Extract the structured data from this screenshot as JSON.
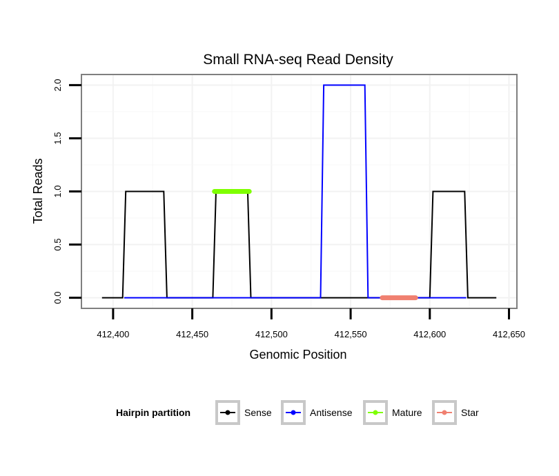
{
  "chart_data": {
    "type": "line",
    "title": "Small RNA-seq Read Density",
    "xlabel": "Genomic Position",
    "ylabel": "Total Reads",
    "xlim": [
      412380,
      412655
    ],
    "ylim": [
      -0.1,
      2.1
    ],
    "x_ticks": [
      412400,
      412450,
      412500,
      412550,
      412600,
      412650
    ],
    "x_tick_labels": [
      "412,400",
      "412,450",
      "412,500",
      "412,550",
      "412,600",
      "412,650"
    ],
    "y_ticks": [
      0,
      0.5,
      1,
      1.5,
      2
    ],
    "y_tick_labels": [
      "0.0",
      "0.5",
      "1.0",
      "1.5",
      "2.0"
    ],
    "grid": true,
    "legend": {
      "title": "Hairpin partition",
      "placement": "bottom",
      "entries": [
        {
          "name": "Sense",
          "color": "#000000"
        },
        {
          "name": "Antisense",
          "color": "#0000ff"
        },
        {
          "name": "Mature",
          "color": "#7fff00"
        },
        {
          "name": "Star",
          "color": "#f08070"
        }
      ]
    },
    "series": [
      {
        "name": "Sense",
        "color": "#000000",
        "x": [
          412393,
          412406,
          412408,
          412432,
          412434,
          412463,
          412465,
          412485,
          412487,
          412600,
          412602,
          412622,
          412624,
          412642
        ],
        "y": [
          0,
          0,
          1,
          1,
          0,
          0,
          1,
          1,
          0,
          0,
          1,
          1,
          0,
          0
        ]
      },
      {
        "name": "Antisense",
        "color": "#0000ff",
        "x": [
          412407,
          412531,
          412533,
          412559,
          412561,
          412623
        ],
        "y": [
          0,
          0,
          2,
          2,
          0,
          0
        ]
      }
    ],
    "segments": [
      {
        "name": "Mature",
        "color": "#7fff00",
        "x_start": 412464,
        "x_end": 412486,
        "y": 1
      },
      {
        "name": "Star",
        "color": "#f08070",
        "x_start": 412570,
        "x_end": 412591,
        "y": 0
      }
    ]
  }
}
